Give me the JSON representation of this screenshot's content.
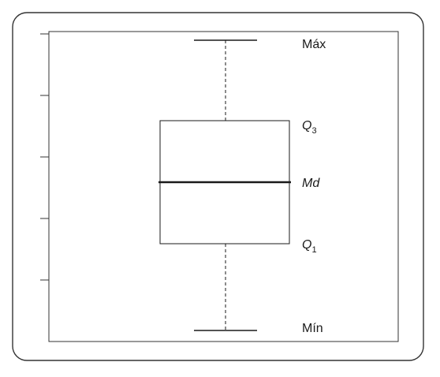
{
  "labels": {
    "max": "Máx",
    "q3_letter": "Q",
    "q3_sub": "3",
    "median": "Md",
    "q1_letter": "Q",
    "q1_sub": "1",
    "min": "Mín"
  },
  "colors": {
    "stroke": "#1a1a1a",
    "frame": "#333333",
    "background": "#ffffff"
  }
}
